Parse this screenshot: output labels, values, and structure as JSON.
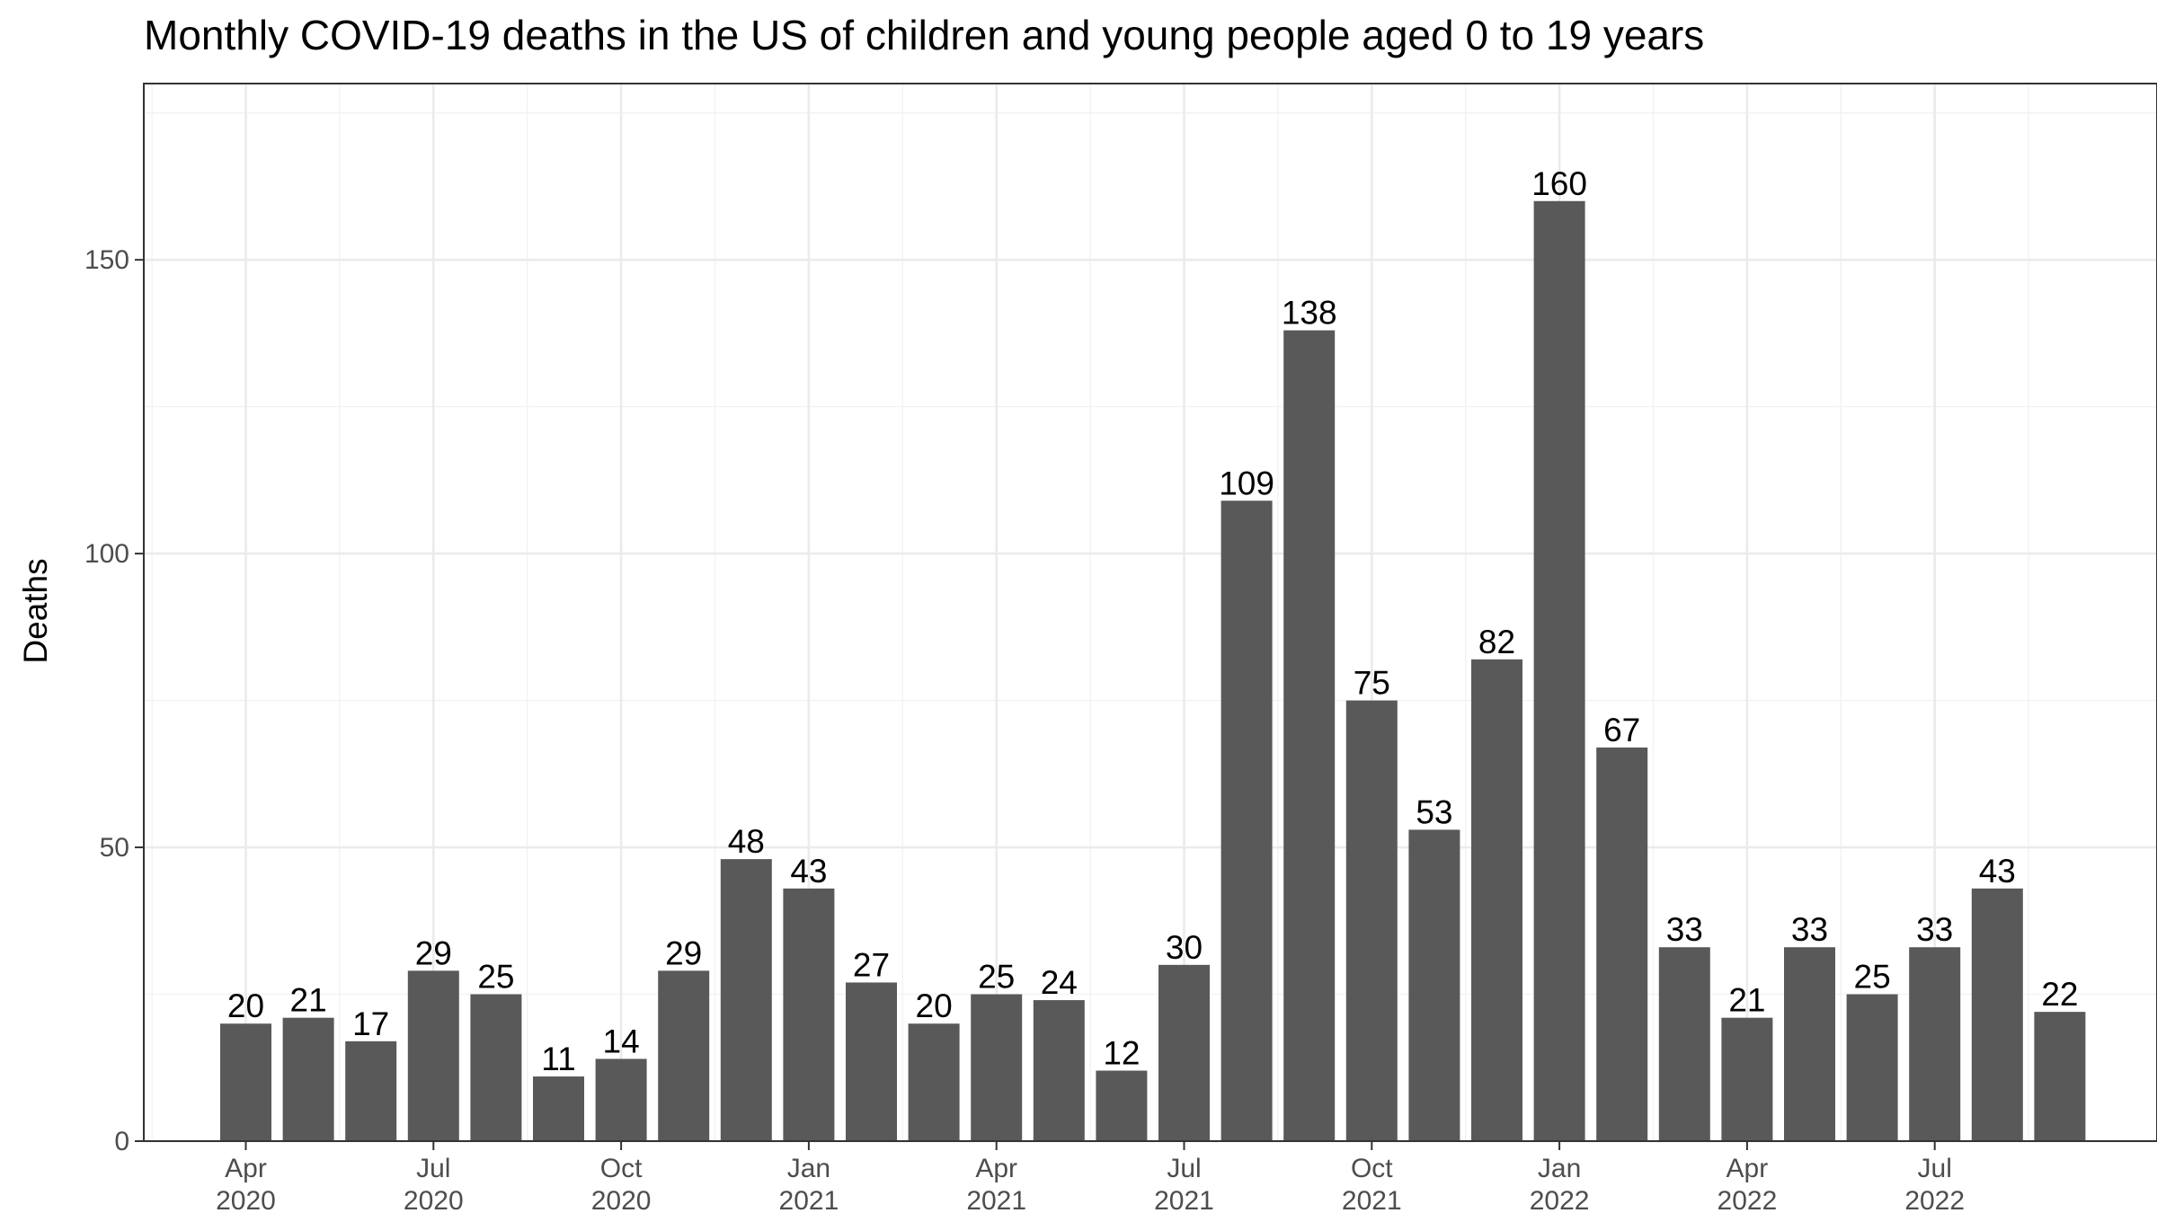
{
  "chart_data": {
    "type": "bar",
    "title": "Monthly COVID-19 deaths in the US of children and young people aged 0 to 19 years",
    "xlabel": "",
    "ylabel": "Deaths",
    "ylim": [
      0,
      180
    ],
    "y_ticks": [
      0,
      50,
      100,
      150
    ],
    "grid": true,
    "bar_color": "#595959",
    "categories": [
      "2020-04",
      "2020-05",
      "2020-06",
      "2020-07",
      "2020-08",
      "2020-09",
      "2020-10",
      "2020-11",
      "2020-12",
      "2021-01",
      "2021-02",
      "2021-03",
      "2021-04",
      "2021-05",
      "2021-06",
      "2021-07",
      "2021-08",
      "2021-09",
      "2021-10",
      "2021-11",
      "2021-12",
      "2022-01",
      "2022-02",
      "2022-03",
      "2022-04",
      "2022-05",
      "2022-06",
      "2022-07",
      "2022-08",
      "2022-09"
    ],
    "values": [
      20,
      21,
      17,
      29,
      25,
      11,
      14,
      29,
      48,
      43,
      27,
      20,
      25,
      24,
      12,
      30,
      109,
      138,
      75,
      53,
      82,
      160,
      67,
      33,
      21,
      33,
      25,
      33,
      43,
      22
    ],
    "x_ticks": [
      {
        "month": "Apr",
        "year": "2020"
      },
      {
        "month": "Jul",
        "year": "2020"
      },
      {
        "month": "Oct",
        "year": "2020"
      },
      {
        "month": "Jan",
        "year": "2021"
      },
      {
        "month": "Apr",
        "year": "2021"
      },
      {
        "month": "Jul",
        "year": "2021"
      },
      {
        "month": "Oct",
        "year": "2021"
      },
      {
        "month": "Jan",
        "year": "2022"
      },
      {
        "month": "Apr",
        "year": "2022"
      },
      {
        "month": "Jul",
        "year": "2022"
      }
    ]
  }
}
